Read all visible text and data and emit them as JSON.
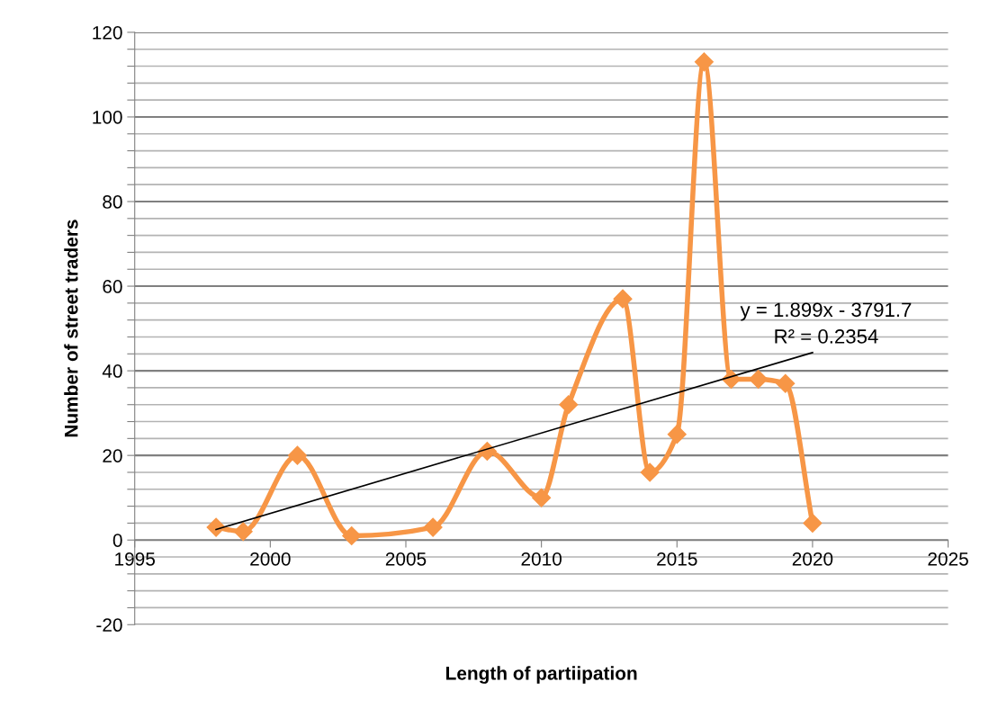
{
  "chart_data": {
    "type": "line",
    "xlabel": "Length of partiipation",
    "ylabel": "Number of street traders",
    "xlim": [
      1995,
      2025
    ],
    "xticks": [
      1995,
      2000,
      2005,
      2010,
      2015,
      2020,
      2025
    ],
    "ylim": [
      -20,
      120
    ],
    "yticks": [
      -20,
      {
        "value": -16,
        "label": null
      },
      {
        "value": -12,
        "label": null
      },
      {
        "value": -8,
        "label": null
      },
      {
        "value": -4,
        "label": null
      },
      0,
      {
        "value": 4,
        "label": null
      },
      {
        "value": 8,
        "label": null
      },
      {
        "value": 12,
        "label": null
      },
      {
        "value": 16,
        "label": null
      },
      20,
      {
        "value": 24,
        "label": null
      },
      {
        "value": 28,
        "label": null
      },
      {
        "value": 32,
        "label": null
      },
      {
        "value": 36,
        "label": null
      },
      40,
      {
        "value": 44,
        "label": null
      },
      {
        "value": 48,
        "label": null
      },
      {
        "value": 52,
        "label": null
      },
      {
        "value": 56,
        "label": null
      },
      60,
      {
        "value": 64,
        "label": null
      },
      {
        "value": 68,
        "label": null
      },
      {
        "value": 72,
        "label": null
      },
      {
        "value": 76,
        "label": null
      },
      80,
      {
        "value": 84,
        "label": null
      },
      {
        "value": 88,
        "label": null
      },
      {
        "value": 92,
        "label": null
      },
      {
        "value": 96,
        "label": null
      },
      100,
      {
        "value": 104,
        "label": null
      },
      {
        "value": 108,
        "label": null
      },
      {
        "value": 112,
        "label": null
      },
      {
        "value": 116,
        "label": null
      },
      120
    ],
    "grid": "y",
    "legend": false,
    "series": [
      {
        "color": "#f79646",
        "marker": "diamond",
        "x": [
          1998,
          1999,
          2001,
          2003,
          2006,
          2008,
          2010,
          2011,
          2013,
          2014,
          2015,
          2016,
          2017,
          2018,
          2019,
          2020
        ],
        "values": [
          3,
          2,
          20,
          1,
          3,
          21,
          10,
          32,
          57,
          16,
          25,
          113,
          38,
          38,
          37,
          4
        ]
      },
      {
        "type": "line",
        "color": "#000000",
        "marker": "none",
        "x": [
          1998,
          2020
        ],
        "values": [
          2.5,
          44.3
        ]
      }
    ],
    "annotations": [
      "y = 1.899x - 3791.7",
      "R² = 0.2354"
    ]
  }
}
